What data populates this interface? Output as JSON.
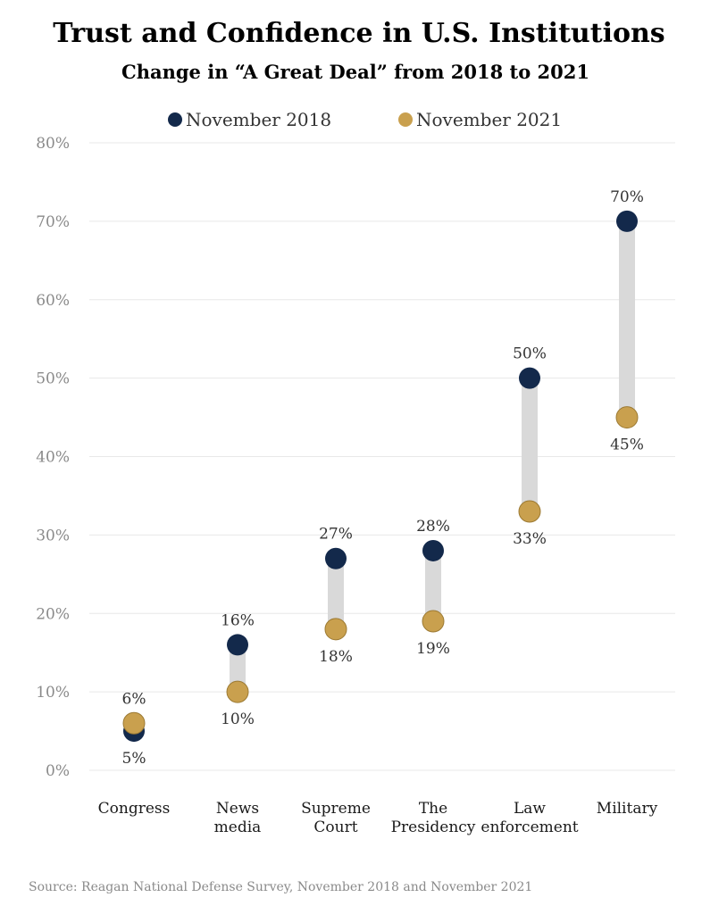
{
  "colors": {
    "nov2018": "#13294b",
    "nov2021": "#c9a04e",
    "bar": "#d9d9d9",
    "grid": "#e8e8e8"
  },
  "chart_data": {
    "type": "dumbbell",
    "title": "Trust and Confidence in U.S. Institutions",
    "subtitle": "Change in “A Great Deal” from 2018 to 2021",
    "legend_position": "top-center",
    "ylim": [
      0,
      80
    ],
    "yticks": [
      0,
      10,
      20,
      30,
      40,
      50,
      60,
      70,
      80
    ],
    "ytick_labels": [
      "0%",
      "10%",
      "20%",
      "30%",
      "40%",
      "50%",
      "60%",
      "70%",
      "80%"
    ],
    "grid": true,
    "categories": [
      [
        "Congress"
      ],
      [
        "News",
        "media"
      ],
      [
        "Supreme",
        "Court"
      ],
      [
        "The",
        "Presidency"
      ],
      [
        "Law",
        "enforcement"
      ],
      [
        "Military"
      ]
    ],
    "series": [
      {
        "name": "November 2018",
        "values": [
          5,
          16,
          27,
          28,
          50,
          70
        ],
        "labels": [
          "5%",
          "16%",
          "27%",
          "28%",
          "50%",
          "70%"
        ]
      },
      {
        "name": "November 2021",
        "values": [
          6,
          10,
          18,
          19,
          33,
          45
        ],
        "labels": [
          "6%",
          "10%",
          "18%",
          "19%",
          "33%",
          "45%"
        ]
      }
    ],
    "source": "Source:  Reagan National Defense Survey, November 2018 and November 2021"
  }
}
